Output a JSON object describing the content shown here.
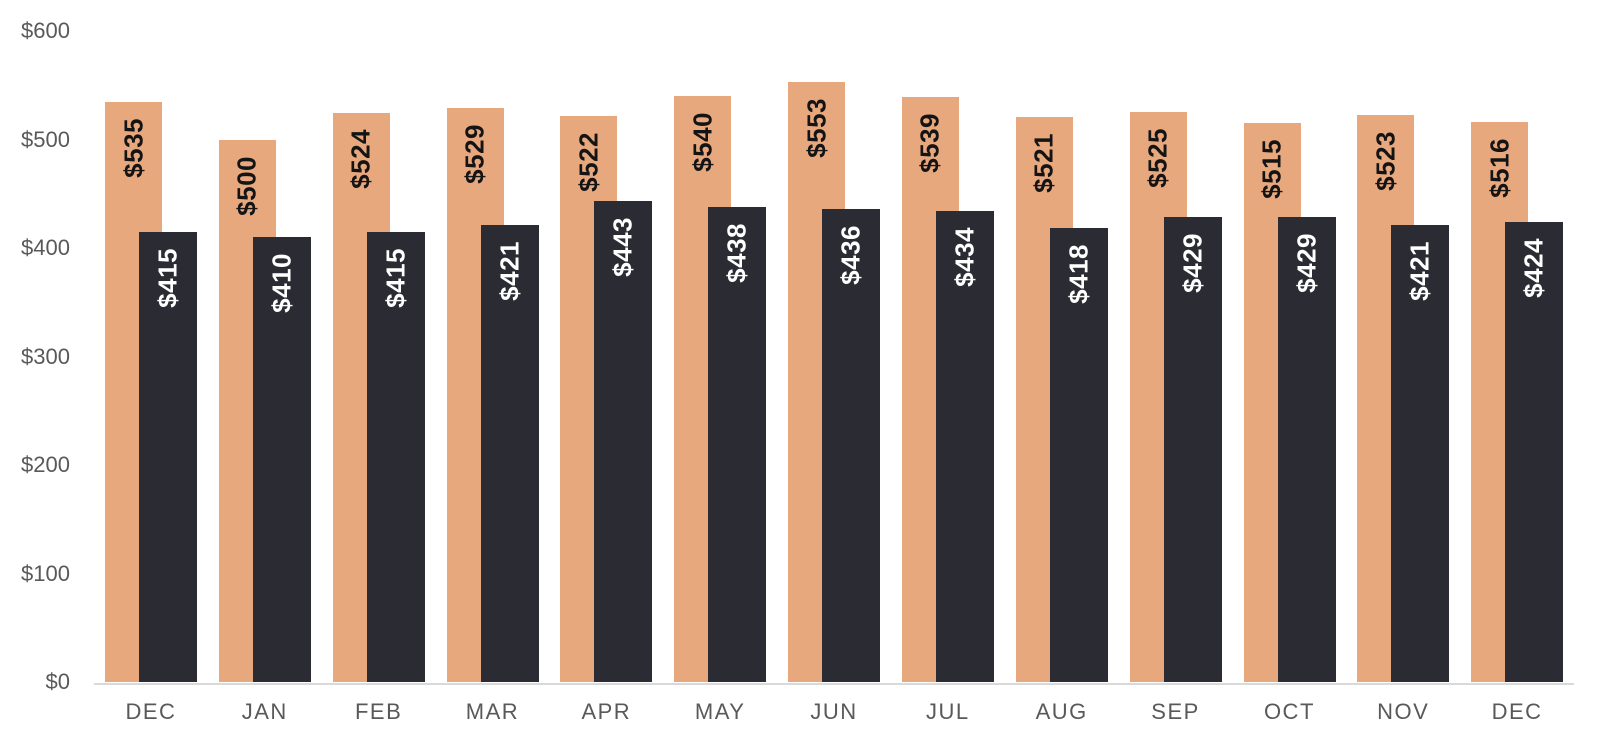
{
  "chart_data": {
    "type": "bar",
    "title": "",
    "xlabel": "",
    "ylabel": "",
    "categories": [
      "DEC",
      "JAN",
      "FEB",
      "MAR",
      "APR",
      "MAY",
      "JUN",
      "JUL",
      "AUG",
      "SEP",
      "OCT",
      "NOV",
      "DEC"
    ],
    "series": [
      {
        "name": "peach-series",
        "color": "#E8A87E",
        "label_color": "#141414",
        "values": [
          535,
          500,
          524,
          529,
          522,
          540,
          553,
          539,
          521,
          525,
          515,
          523,
          516
        ],
        "labels": [
          "$535",
          "$500",
          "$524",
          "$529",
          "$522",
          "$540",
          "$553",
          "$539",
          "$521",
          "$525",
          "$515",
          "$523",
          "$516"
        ]
      },
      {
        "name": "dark-series",
        "color": "#2B2B33",
        "label_color": "#ffffff",
        "values": [
          415,
          410,
          415,
          421,
          443,
          438,
          436,
          434,
          418,
          429,
          429,
          421,
          424
        ],
        "labels": [
          "$415",
          "$410",
          "$415",
          "$421",
          "$443",
          "$438",
          "$436",
          "$434",
          "$418",
          "$429",
          "$429",
          "$421",
          "$424"
        ]
      }
    ],
    "value_prefix": "$",
    "y_ticks": [
      {
        "value": 0,
        "label": "$0"
      },
      {
        "value": 100,
        "label": "$100"
      },
      {
        "value": 200,
        "label": "$200"
      },
      {
        "value": 300,
        "label": "$300"
      },
      {
        "value": 400,
        "label": "$400"
      },
      {
        "value": 500,
        "label": "$500"
      },
      {
        "value": 600,
        "label": "$600"
      }
    ],
    "ylim": [
      0,
      600
    ],
    "grid": "off",
    "legend": "none",
    "axis_text_color": "#595959",
    "axis_line_color": "#D9D9D9",
    "background_color": "#ffffff"
  }
}
